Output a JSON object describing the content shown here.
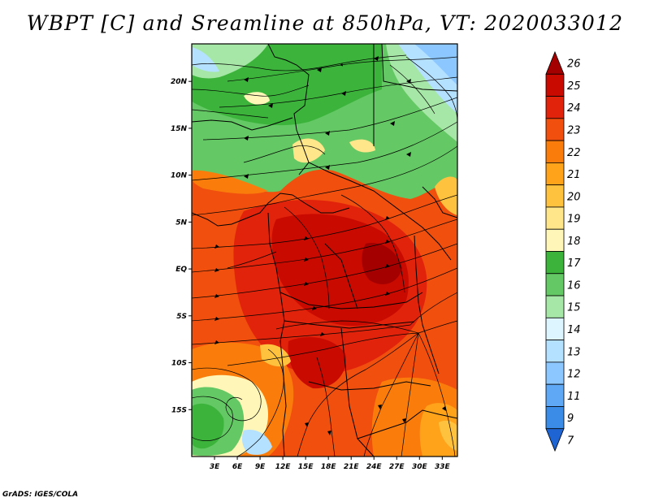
{
  "title": "WBPT [C] and Sreamline at 850hPa, VT: 2020033012",
  "credit": "GrADS: IGES/COLA",
  "map": {
    "lat_labels": [
      {
        "text": "20N",
        "lat": 20
      },
      {
        "text": "15N",
        "lat": 15
      },
      {
        "text": "10N",
        "lat": 10
      },
      {
        "text": "5N",
        "lat": 5
      },
      {
        "text": "EQ",
        "lat": 0
      },
      {
        "text": "5S",
        "lat": -5
      },
      {
        "text": "10S",
        "lat": -10
      },
      {
        "text": "15S",
        "lat": -15
      }
    ],
    "lon_labels": [
      {
        "text": "3E",
        "lon": 3
      },
      {
        "text": "6E",
        "lon": 6
      },
      {
        "text": "9E",
        "lon": 9
      },
      {
        "text": "12E",
        "lon": 12
      },
      {
        "text": "15E",
        "lon": 15
      },
      {
        "text": "18E",
        "lon": 18
      },
      {
        "text": "21E",
        "lon": 21
      },
      {
        "text": "24E",
        "lon": 24
      },
      {
        "text": "27E",
        "lon": 27
      },
      {
        "text": "30E",
        "lon": 30
      },
      {
        "text": "33E",
        "lon": 33
      }
    ],
    "lon_range": [
      0,
      35
    ],
    "lat_range": [
      -20,
      24
    ]
  },
  "colorbar": {
    "levels": [
      {
        "label": "26",
        "color": "#a50000"
      },
      {
        "label": "25",
        "color": "#c80a00"
      },
      {
        "label": "24",
        "color": "#e1230b"
      },
      {
        "label": "23",
        "color": "#f04f0e"
      },
      {
        "label": "22",
        "color": "#fa7d0c"
      },
      {
        "label": "21",
        "color": "#ffa31a"
      },
      {
        "label": "20",
        "color": "#ffc23f"
      },
      {
        "label": "19",
        "color": "#ffe68a"
      },
      {
        "label": "18",
        "color": "#fff6b8"
      },
      {
        "label": "17",
        "color": "#3cb43c"
      },
      {
        "label": "16",
        "color": "#64c864"
      },
      {
        "label": "15",
        "color": "#a6e6a6"
      },
      {
        "label": "14",
        "color": "#dcf5ff"
      },
      {
        "label": "13",
        "color": "#b4e1ff"
      },
      {
        "label": "12",
        "color": "#8cc8ff"
      },
      {
        "label": "11",
        "color": "#5ea8f5"
      },
      {
        "label": "9",
        "color": "#3a8ce6"
      },
      {
        "label": "7",
        "color": "#1e64d2"
      }
    ]
  }
}
